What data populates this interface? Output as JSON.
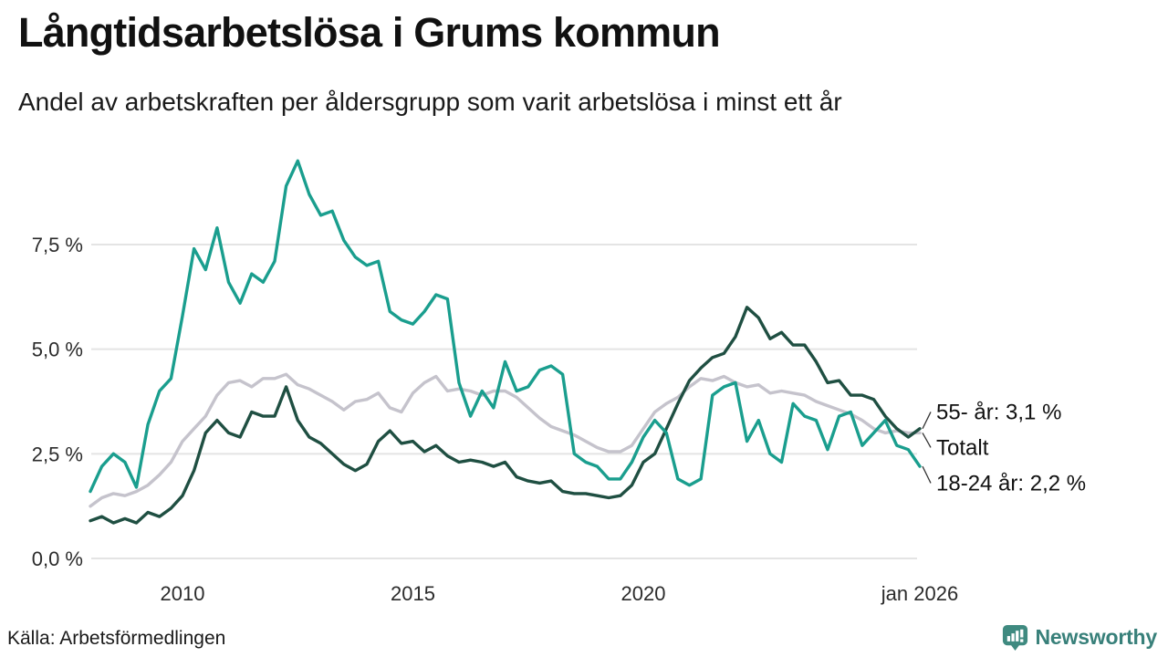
{
  "chart_data": {
    "type": "line",
    "title": "Långtidsarbetslösa i Grums kommun",
    "subtitle": "Andel av arbetskraften per åldersgrupp som varit arbetslösa i minst ett år",
    "x_start": 2008.0,
    "x_step": 0.25,
    "xlim": [
      2008,
      2026
    ],
    "ylim": [
      0,
      9.9
    ],
    "grid": true,
    "legend_position": "end-labels-right",
    "gridline_color": "#e4e4e4",
    "x_ticks": [
      {
        "year": 2010,
        "label": "2010"
      },
      {
        "year": 2015,
        "label": "2015"
      },
      {
        "year": 2020,
        "label": "2020"
      },
      {
        "year": 2026,
        "label": "jan 2026"
      }
    ],
    "y_ticks": [
      {
        "value": 7.5,
        "label": "7,5 %"
      },
      {
        "value": 5.0,
        "label": "5,0 %"
      },
      {
        "value": 2.5,
        "label": "2,5 %"
      },
      {
        "value": 0.0,
        "label": "0,0 %"
      }
    ],
    "series": [
      {
        "name": "Totalt",
        "color": "#c5c3cc",
        "end_label": "Totalt",
        "values": [
          1.25,
          1.45,
          1.55,
          1.5,
          1.6,
          1.75,
          2.0,
          2.3,
          2.8,
          3.1,
          3.4,
          3.9,
          4.2,
          4.25,
          4.1,
          4.3,
          4.3,
          4.4,
          4.15,
          4.05,
          3.9,
          3.75,
          3.55,
          3.75,
          3.8,
          3.95,
          3.6,
          3.5,
          3.95,
          4.2,
          4.35,
          4.0,
          4.05,
          4.0,
          3.9,
          4.0,
          4.0,
          3.85,
          3.6,
          3.35,
          3.15,
          3.05,
          2.95,
          2.8,
          2.65,
          2.55,
          2.55,
          2.7,
          3.1,
          3.5,
          3.7,
          3.85,
          4.1,
          4.3,
          4.25,
          4.35,
          4.2,
          4.1,
          4.15,
          3.95,
          4.0,
          3.95,
          3.9,
          3.75,
          3.65,
          3.55,
          3.45,
          3.3,
          3.1,
          3.0,
          3.05,
          3.0,
          3.0
        ]
      },
      {
        "name": "18-24 år",
        "color": "#1a9e8e",
        "end_label": "18-24 år: 2,2 %",
        "values": [
          1.6,
          2.2,
          2.5,
          2.3,
          1.7,
          3.2,
          4.0,
          4.3,
          5.8,
          7.4,
          6.9,
          7.9,
          6.6,
          6.1,
          6.8,
          6.6,
          7.1,
          8.9,
          9.5,
          8.7,
          8.2,
          8.3,
          7.6,
          7.2,
          7.0,
          7.1,
          5.9,
          5.7,
          5.6,
          5.9,
          6.3,
          6.2,
          4.2,
          3.4,
          4.0,
          3.6,
          4.7,
          4.0,
          4.1,
          4.5,
          4.6,
          4.4,
          2.5,
          2.3,
          2.2,
          1.9,
          1.9,
          2.3,
          2.9,
          3.3,
          3.0,
          1.9,
          1.75,
          1.9,
          3.9,
          4.1,
          4.2,
          2.8,
          3.3,
          2.5,
          2.3,
          3.7,
          3.4,
          3.3,
          2.6,
          3.4,
          3.5,
          2.7,
          3.0,
          3.3,
          2.7,
          2.6,
          2.2
        ]
      },
      {
        "name": "55- år",
        "color": "#1f4f42",
        "end_label": "55- år: 3,1 %",
        "values": [
          0.9,
          1.0,
          0.85,
          0.95,
          0.85,
          1.1,
          1.0,
          1.2,
          1.5,
          2.1,
          3.0,
          3.3,
          3.0,
          2.9,
          3.5,
          3.4,
          3.4,
          4.1,
          3.3,
          2.9,
          2.75,
          2.5,
          2.25,
          2.1,
          2.25,
          2.8,
          3.05,
          2.75,
          2.8,
          2.55,
          2.7,
          2.45,
          2.3,
          2.35,
          2.3,
          2.2,
          2.3,
          1.95,
          1.85,
          1.8,
          1.85,
          1.6,
          1.55,
          1.55,
          1.5,
          1.45,
          1.5,
          1.75,
          2.3,
          2.5,
          3.1,
          3.7,
          4.25,
          4.55,
          4.8,
          4.9,
          5.3,
          6.0,
          5.75,
          5.25,
          5.4,
          5.1,
          5.1,
          4.7,
          4.2,
          4.25,
          3.9,
          3.9,
          3.8,
          3.4,
          3.1,
          2.9,
          3.1
        ]
      }
    ]
  },
  "footer": {
    "source": "Källa: Arbetsförmedlingen",
    "brand": "Newsworthy"
  }
}
